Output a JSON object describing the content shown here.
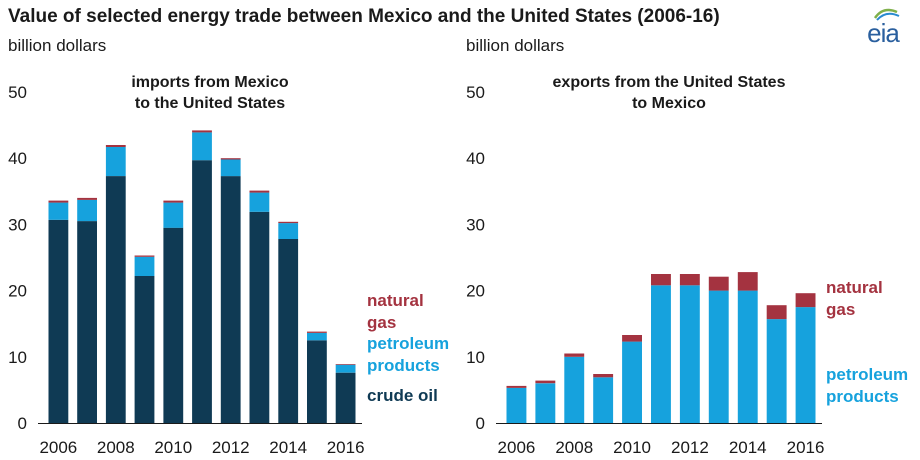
{
  "title": "Value of selected energy trade between Mexico and the United States (2006-16)",
  "logo_text": "eia",
  "colors": {
    "crude_oil": "#0f3a54",
    "petroleum_products": "#16a2dd",
    "natural_gas": "#a43340",
    "axis": "#1a1a1a",
    "grid": "#d9d9d9",
    "logo": "#2a5f9e"
  },
  "chart_data": [
    {
      "type": "bar",
      "stacked": true,
      "title": "imports from Mexico",
      "subtitle": "to the United States",
      "ylabel": "billion dollars",
      "ylim": [
        0,
        50
      ],
      "yticks": [
        "0",
        "10",
        "20",
        "30",
        "40",
        "50"
      ],
      "categories": [
        "2006",
        "2007",
        "2008",
        "2009",
        "2010",
        "2011",
        "2012",
        "2013",
        "2014",
        "2015",
        "2016"
      ],
      "xtick_labels": [
        "2006",
        "2008",
        "2010",
        "2012",
        "2014",
        "2016"
      ],
      "series": [
        {
          "name": "crude oil",
          "label_lines": [
            "crude oil"
          ],
          "color_key": "crude_oil",
          "values": [
            30.7,
            30.5,
            37.3,
            22.2,
            29.5,
            39.7,
            37.3,
            31.9,
            27.8,
            12.5,
            7.6
          ]
        },
        {
          "name": "petroleum products",
          "label_lines": [
            "petroleum",
            "products"
          ],
          "color_key": "petroleum_products",
          "values": [
            2.6,
            3.2,
            4.4,
            2.9,
            3.8,
            4.2,
            2.5,
            2.9,
            2.4,
            1.1,
            1.2
          ]
        },
        {
          "name": "natural gas",
          "label_lines": [
            "natural",
            "gas"
          ],
          "color_key": "natural_gas",
          "values": [
            0.3,
            0.3,
            0.3,
            0.2,
            0.3,
            0.3,
            0.2,
            0.3,
            0.2,
            0.2,
            0.1
          ]
        }
      ]
    },
    {
      "type": "bar",
      "stacked": true,
      "title": "exports from the United States",
      "subtitle": "to Mexico",
      "ylabel": "billion dollars",
      "ylim": [
        0,
        50
      ],
      "yticks": [
        "0",
        "10",
        "20",
        "30",
        "40",
        "50"
      ],
      "categories": [
        "2006",
        "2007",
        "2008",
        "2009",
        "2010",
        "2011",
        "2012",
        "2013",
        "2014",
        "2015",
        "2016"
      ],
      "xtick_labels": [
        "2006",
        "2008",
        "2010",
        "2012",
        "2014",
        "2016"
      ],
      "series": [
        {
          "name": "petroleum products",
          "label_lines": [
            "petroleum",
            "products"
          ],
          "color_key": "petroleum_products",
          "values": [
            5.3,
            6.0,
            10.0,
            6.9,
            12.3,
            20.8,
            20.8,
            20.0,
            20.0,
            15.7,
            17.5
          ]
        },
        {
          "name": "natural gas",
          "label_lines": [
            "natural",
            "gas"
          ],
          "color_key": "natural_gas",
          "values": [
            0.3,
            0.4,
            0.5,
            0.5,
            1.0,
            1.7,
            1.7,
            2.1,
            2.8,
            2.1,
            2.1
          ]
        }
      ]
    }
  ]
}
